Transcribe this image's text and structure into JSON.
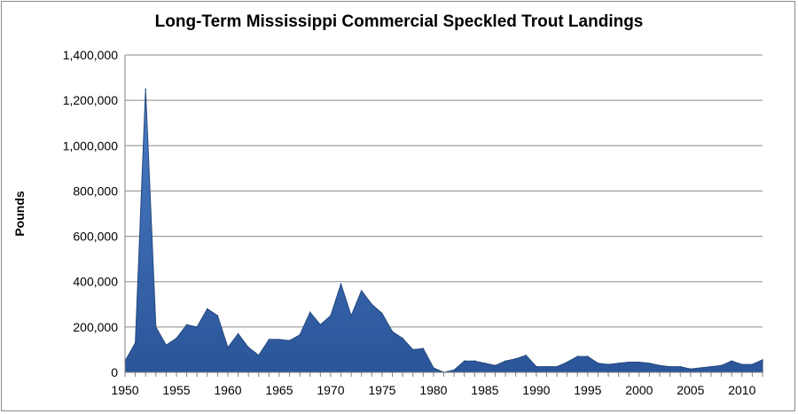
{
  "chart_data": {
    "type": "area",
    "title": "Long-Term Mississippi Commercial Speckled Trout Landings",
    "xlabel": "",
    "ylabel": "Pounds",
    "xlim": [
      1950,
      2012
    ],
    "ylim": [
      0,
      1400000
    ],
    "y_ticks": [
      0,
      200000,
      400000,
      600000,
      800000,
      1000000,
      1200000,
      1400000
    ],
    "y_tick_labels": [
      "0",
      "200,000",
      "400,000",
      "600,000",
      "800,000",
      "1,000,000",
      "1,200,000",
      "1,400,000"
    ],
    "x_ticks": [
      1950,
      1955,
      1960,
      1965,
      1970,
      1975,
      1980,
      1985,
      1990,
      1995,
      2000,
      2005,
      2010
    ],
    "x_tick_labels": [
      "1950",
      "1955",
      "1960",
      "1965",
      "1970",
      "1975",
      "1980",
      "1985",
      "1990",
      "1995",
      "2000",
      "2005",
      "2010"
    ],
    "grid": true,
    "legend": "none",
    "series_color": "#3a66a8",
    "x": [
      1950,
      1951,
      1952,
      1953,
      1954,
      1955,
      1956,
      1957,
      1958,
      1959,
      1960,
      1961,
      1962,
      1963,
      1964,
      1965,
      1966,
      1967,
      1968,
      1969,
      1970,
      1971,
      1972,
      1973,
      1974,
      1975,
      1976,
      1977,
      1978,
      1979,
      1980,
      1981,
      1982,
      1983,
      1984,
      1985,
      1986,
      1987,
      1988,
      1989,
      1990,
      1991,
      1992,
      1993,
      1994,
      1995,
      1996,
      1997,
      1998,
      1999,
      2000,
      2001,
      2002,
      2003,
      2004,
      2005,
      2006,
      2007,
      2008,
      2009,
      2010,
      2011,
      2012
    ],
    "values": [
      50000,
      130000,
      1250000,
      200000,
      120000,
      150000,
      210000,
      200000,
      280000,
      250000,
      110000,
      170000,
      110000,
      75000,
      145000,
      145000,
      140000,
      165000,
      265000,
      210000,
      250000,
      390000,
      250000,
      360000,
      300000,
      260000,
      180000,
      150000,
      100000,
      105000,
      20000,
      0,
      10000,
      50000,
      50000,
      40000,
      30000,
      50000,
      60000,
      75000,
      25000,
      25000,
      25000,
      45000,
      70000,
      70000,
      40000,
      35000,
      40000,
      45000,
      45000,
      40000,
      30000,
      25000,
      25000,
      15000,
      20000,
      25000,
      30000,
      50000,
      35000,
      35000,
      55000
    ]
  }
}
